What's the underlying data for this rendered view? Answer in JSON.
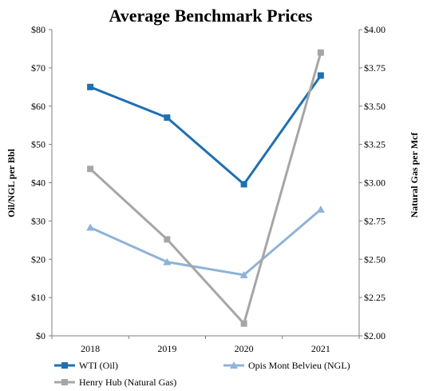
{
  "chart_data": {
    "type": "line",
    "title": "Average Benchmark Prices",
    "categories": [
      "2018",
      "2019",
      "2020",
      "2021"
    ],
    "y_left": {
      "label": "Oil/NGL per Bbl",
      "ylim": [
        0,
        80
      ],
      "ticks": [
        0,
        10,
        20,
        30,
        40,
        50,
        60,
        70,
        80
      ],
      "tick_labels": [
        "$0",
        "$10",
        "$20",
        "$30",
        "$40",
        "$50",
        "$60",
        "$70",
        "$80"
      ]
    },
    "y_right": {
      "label": "Natural Gas per Mcf",
      "ylim": [
        2.0,
        4.0
      ],
      "ticks": [
        2.0,
        2.25,
        2.5,
        2.75,
        3.0,
        3.25,
        3.5,
        3.75,
        4.0
      ],
      "tick_labels": [
        "$2.00",
        "$2.25",
        "$2.50",
        "$2.75",
        "$3.00",
        "$3.25",
        "$3.50",
        "$3.75",
        "$4.00"
      ]
    },
    "series": [
      {
        "name": "WTI (Oil)",
        "axis": "left",
        "values": [
          65.0,
          57.0,
          39.6,
          68.0
        ],
        "color": "#1f6fb2",
        "marker": "square"
      },
      {
        "name": "Opis Mont Belvieu (NGL)",
        "axis": "left",
        "values": [
          28.3,
          19.3,
          15.9,
          33.0
        ],
        "color": "#8fb3d9",
        "marker": "triangle"
      },
      {
        "name": "Henry Hub (Natural Gas)",
        "axis": "right",
        "values": [
          3.09,
          2.63,
          2.08,
          3.85
        ],
        "color": "#a6a6a6",
        "marker": "square"
      }
    ],
    "grid": false,
    "legend": "bottom"
  }
}
